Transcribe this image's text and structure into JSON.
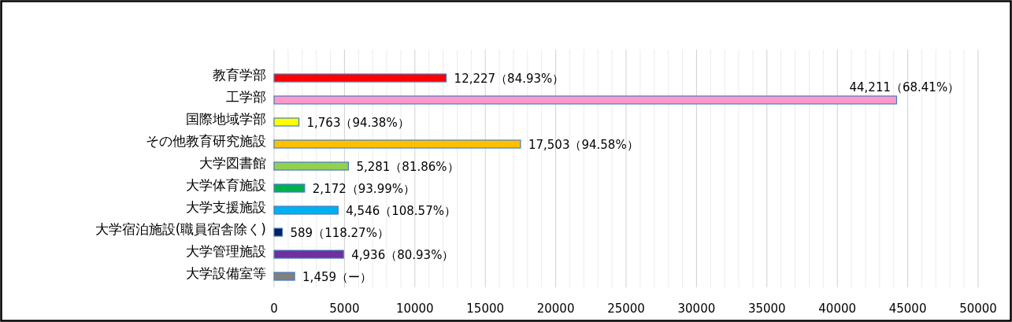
{
  "chart_data": {
    "type": "bar",
    "orientation": "horizontal",
    "categories": [
      "教育学部",
      "工学部",
      "国際地域学部",
      "その他教育研究施設",
      "大学図書館",
      "大学体育施設",
      "大学支援施設",
      "大学宿泊施設(職員宿舎除く)",
      "大学管理施設",
      "大学設備室等"
    ],
    "values": [
      12227,
      44211,
      1763,
      17503,
      5281,
      2172,
      4546,
      589,
      4936,
      1459
    ],
    "colors": [
      "#ff0000",
      "#ff99cc",
      "#ffff00",
      "#ffc000",
      "#92d050",
      "#00b050",
      "#00b0f0",
      "#002060",
      "#7030a0",
      "#808080"
    ],
    "value_labels": [
      "12,227（84.93%）",
      "44,211（68.41%）",
      "1,763（94.38%）",
      "17,503（94.58%）",
      "5,281（81.86%）",
      "2,172（93.99%）",
      "4,546（108.57%）",
      "589（118.27%）",
      "4,936（80.93%）",
      "1,459（ー）"
    ],
    "xlim": [
      0,
      50000
    ],
    "xticks": [
      0,
      5000,
      10000,
      15000,
      20000,
      25000,
      30000,
      35000,
      40000,
      45000,
      50000
    ],
    "grid": "x"
  }
}
